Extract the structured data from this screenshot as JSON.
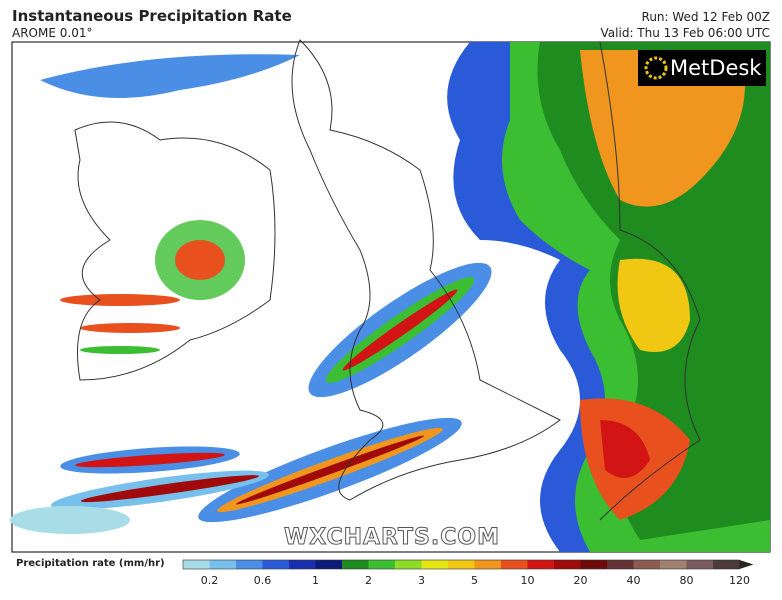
{
  "header": {
    "title": "Instantaneous Precipitation Rate",
    "model": "AROME 0.01°",
    "run": "Run: Wed 12 Feb 00Z",
    "valid": "Valid: Thu 13 Feb 06:00 UTC"
  },
  "map": {
    "logo": "MetDesk",
    "watermark": "WXCHARTS.COM"
  },
  "legend": {
    "label": "Precipitation rate (mm/hr)",
    "ticks": [
      0.2,
      0.6,
      1,
      2,
      3,
      5,
      10,
      20,
      40,
      80,
      120
    ],
    "colors": [
      "#a8dce6",
      "#78c0ec",
      "#4a8ee6",
      "#2a5ad8",
      "#1a2fb0",
      "#0c1a7a",
      "#1e8c1e",
      "#3cbe32",
      "#8cdc28",
      "#e6e614",
      "#f0c814",
      "#f0961e",
      "#e8501e",
      "#d21414",
      "#a00a0a",
      "#6e0a0a",
      "#643232",
      "#8c5a50",
      "#a08070",
      "#7a5c5c",
      "#4a3a3a",
      "#2c2424"
    ]
  }
}
